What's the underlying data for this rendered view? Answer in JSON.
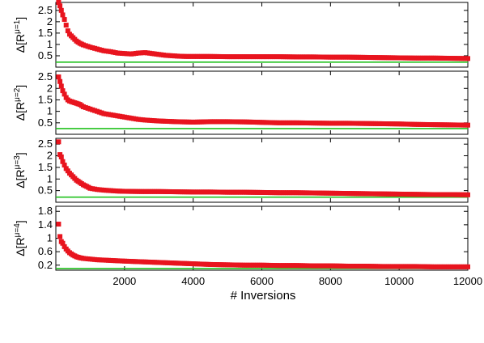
{
  "chart_data": [
    {
      "type": "scatter",
      "ylabel_base": "Δ[R",
      "ylabel_sup": "μ=1",
      "ylabel_close": "]",
      "ylim": [
        0.0,
        2.85
      ],
      "yticks": [
        0.5,
        1,
        1.5,
        2,
        2.5
      ],
      "ytick_labels": [
        "0.5",
        "1",
        "1.5",
        "2",
        "2.5"
      ],
      "reference_line": 0.22,
      "series": [
        {
          "marker_color": "#e8141e",
          "x": [
            80,
            120,
            160,
            200,
            250,
            300,
            350,
            400,
            500,
            600,
            700,
            800,
            1000,
            1200,
            1400,
            1600,
            1800,
            2000,
            2200,
            2400,
            2600,
            2800,
            3000,
            3200,
            3400,
            3600,
            3800,
            4000,
            4500,
            5000,
            5500,
            6000,
            6500,
            7000,
            7500,
            8000,
            8500,
            9000,
            9500,
            10000,
            10500,
            11000,
            11500,
            12000
          ],
          "y": [
            2.85,
            2.7,
            2.5,
            2.3,
            2.1,
            1.85,
            1.6,
            1.45,
            1.3,
            1.15,
            1.05,
            0.98,
            0.88,
            0.8,
            0.72,
            0.68,
            0.62,
            0.6,
            0.58,
            0.62,
            0.64,
            0.6,
            0.56,
            0.52,
            0.5,
            0.48,
            0.47,
            0.47,
            0.47,
            0.46,
            0.46,
            0.46,
            0.46,
            0.45,
            0.45,
            0.44,
            0.44,
            0.43,
            0.42,
            0.41,
            0.4,
            0.4,
            0.39,
            0.38
          ]
        }
      ]
    },
    {
      "type": "scatter",
      "ylabel_base": "Δ[R",
      "ylabel_sup": "μ=2",
      "ylabel_close": "]",
      "ylim": [
        0.0,
        2.75
      ],
      "yticks": [
        0.5,
        1,
        1.5,
        2,
        2.5
      ],
      "ytick_labels": [
        "0.5",
        "1",
        "1.5",
        "2",
        "2.5"
      ],
      "reference_line": 0.25,
      "series": [
        {
          "marker_color": "#e8141e",
          "x": [
            80,
            120,
            160,
            200,
            250,
            300,
            350,
            400,
            500,
            600,
            700,
            800,
            1000,
            1200,
            1400,
            1600,
            1800,
            2000,
            2200,
            2400,
            2600,
            2800,
            3000,
            3500,
            4000,
            4500,
            5000,
            5500,
            6000,
            6500,
            7000,
            7500,
            8000,
            8500,
            9000,
            9500,
            10000,
            10500,
            11000,
            11500,
            12000
          ],
          "y": [
            2.5,
            2.3,
            2.1,
            1.9,
            1.75,
            1.6,
            1.5,
            1.45,
            1.4,
            1.35,
            1.3,
            1.2,
            1.1,
            1.0,
            0.9,
            0.85,
            0.8,
            0.75,
            0.7,
            0.65,
            0.62,
            0.6,
            0.58,
            0.55,
            0.53,
            0.55,
            0.55,
            0.54,
            0.52,
            0.5,
            0.5,
            0.49,
            0.48,
            0.48,
            0.47,
            0.46,
            0.45,
            0.43,
            0.42,
            0.41,
            0.4
          ]
        }
      ]
    },
    {
      "type": "scatter",
      "ylabel_base": "Δ[R",
      "ylabel_sup": "μ=3",
      "ylabel_close": "]",
      "ylim": [
        0.0,
        2.75
      ],
      "yticks": [
        0.5,
        1,
        1.5,
        2,
        2.5
      ],
      "ytick_labels": [
        "0.5",
        "1",
        "1.5",
        "2",
        "2.5"
      ],
      "reference_line": 0.22,
      "series": [
        {
          "marker_color": "#e8141e",
          "x": [
            80,
            120,
            160,
            200,
            250,
            300,
            350,
            400,
            500,
            600,
            700,
            800,
            900,
            1000,
            1200,
            1400,
            1600,
            1800,
            2000,
            2500,
            3000,
            3500,
            4000,
            4500,
            5000,
            5500,
            6000,
            6500,
            7000,
            7500,
            8000,
            8500,
            9000,
            9500,
            10000,
            10500,
            11000,
            11500,
            12000
          ],
          "y": [
            2.6,
            2.05,
            1.95,
            1.75,
            1.6,
            1.45,
            1.35,
            1.25,
            1.1,
            0.95,
            0.85,
            0.75,
            0.68,
            0.6,
            0.55,
            0.52,
            0.5,
            0.48,
            0.47,
            0.46,
            0.46,
            0.45,
            0.44,
            0.44,
            0.43,
            0.43,
            0.42,
            0.41,
            0.41,
            0.4,
            0.39,
            0.38,
            0.37,
            0.36,
            0.35,
            0.34,
            0.33,
            0.33,
            0.32
          ]
        }
      ]
    },
    {
      "type": "scatter",
      "ylabel_base": "Δ[R",
      "ylabel_sup": "μ=4",
      "ylabel_close": "]",
      "ylim": [
        0.05,
        1.95
      ],
      "yticks": [
        0.2,
        0.6,
        1,
        1.4,
        1.8
      ],
      "ytick_labels": [
        "0.2",
        "0.6",
        "1",
        "1.4",
        "1.8"
      ],
      "reference_line": 0.1,
      "series": [
        {
          "marker_color": "#e8141e",
          "x": [
            80,
            120,
            160,
            200,
            250,
            300,
            350,
            400,
            500,
            600,
            700,
            800,
            1000,
            1200,
            1400,
            1600,
            1800,
            2000,
            2500,
            3000,
            3500,
            4000,
            4500,
            5000,
            5500,
            6000,
            6500,
            7000,
            7500,
            8000,
            8500,
            9000,
            9500,
            10000,
            10500,
            11000,
            11500,
            12000
          ],
          "y": [
            1.42,
            1.05,
            0.9,
            0.85,
            0.75,
            0.68,
            0.62,
            0.57,
            0.5,
            0.45,
            0.42,
            0.4,
            0.38,
            0.36,
            0.35,
            0.34,
            0.33,
            0.32,
            0.3,
            0.28,
            0.26,
            0.24,
            0.22,
            0.21,
            0.2,
            0.2,
            0.19,
            0.19,
            0.18,
            0.18,
            0.17,
            0.17,
            0.16,
            0.16,
            0.16,
            0.15,
            0.15,
            0.15
          ]
        }
      ]
    }
  ],
  "x_axis": {
    "xlabel": "# Inversions",
    "xlim": [
      0,
      12000
    ],
    "xticks": [
      2000,
      4000,
      6000,
      8000,
      10000,
      12000
    ],
    "xtick_labels": [
      "2000",
      "4000",
      "6000",
      "8000",
      "10000",
      "12000"
    ]
  },
  "colors": {
    "marker": "#e8141e",
    "reference_line": "#22c21f",
    "axis": "#000000"
  }
}
